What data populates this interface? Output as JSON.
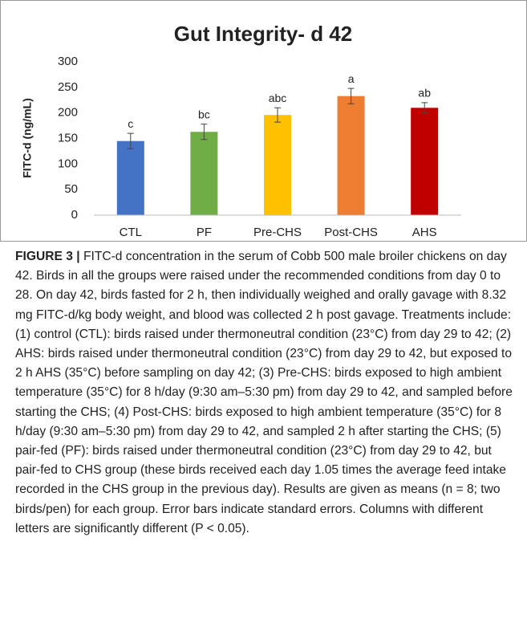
{
  "chart_data": {
    "type": "bar",
    "title": "Gut Integrity- d 42",
    "y_label": "FITC-d (ng/mL)",
    "categories": [
      "CTL",
      "PF",
      "Pre-CHS",
      "Post-CHS",
      "AHS"
    ],
    "values": [
      145,
      163,
      196,
      233,
      210
    ],
    "errors": [
      15,
      15,
      14,
      15,
      10
    ],
    "letters": [
      "c",
      "bc",
      "abc",
      "a",
      "ab"
    ],
    "colors": [
      "#4472c4",
      "#70ad47",
      "#ffc000",
      "#ed7d31",
      "#c00000"
    ],
    "ylim": [
      0,
      300
    ],
    "yticks": [
      0,
      50,
      100,
      150,
      200,
      250,
      300
    ],
    "grid": false
  },
  "caption": {
    "label": "FIGURE 3 |",
    "text": " FITC-d concentration in the serum of Cobb 500 male broiler chickens on day 42. Birds in all the groups were raised under the recommended conditions from day 0 to 28. On day 42, birds fasted for 2 h, then individually weighed and orally gavage with 8.32 mg FITC-d/kg body weight, and blood was collected 2 h post gavage. Treatments include: (1) control (CTL): birds raised under thermoneutral condition (23°C) from day 29 to 42; (2) AHS: birds raised under thermoneutral condition (23°C) from day 29 to 42, but exposed to 2 h AHS (35°C) before sampling on day 42; (3) Pre-CHS: birds exposed to high ambient temperature (35°C) for 8 h/day (9:30 am–5:30 pm) from day 29 to 42, and sampled before starting the CHS; (4) Post-CHS: birds exposed to high ambient temperature (35°C) for 8 h/day (9:30 am–5:30 pm) from day 29 to 42, and sampled 2 h after starting the CHS; (5) pair-fed (PF): birds raised under thermoneutral condition (23°C) from day 29 to 42, but pair-fed to CHS group (these birds received each day 1.05 times the average feed intake recorded in the CHS group in the previous day). Results are given as means (n = 8; two birds/pen) for each group. Error bars indicate standard errors. Columns with different letters are significantly different (P < 0.05)."
  }
}
